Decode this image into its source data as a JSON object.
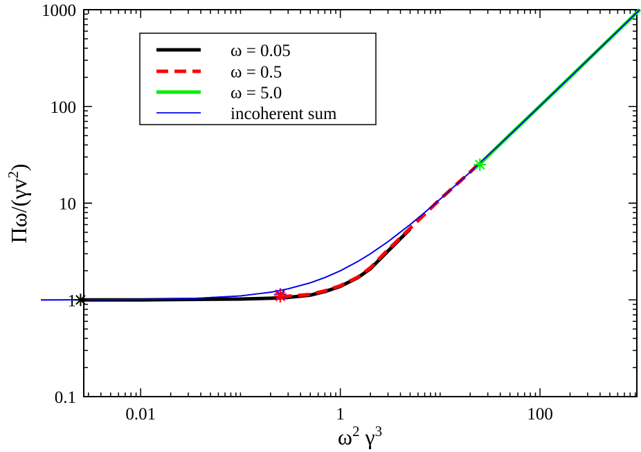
{
  "chart_data": {
    "type": "line",
    "xscale": "log",
    "yscale": "log",
    "xlim": [
      0.001,
      1000
    ],
    "ylim": [
      0.1,
      1000
    ],
    "xticks": [
      {
        "value": 0.01,
        "label": "0.01"
      },
      {
        "value": 1,
        "label": "1"
      },
      {
        "value": 100,
        "label": "100"
      }
    ],
    "yticks": [
      {
        "value": 0.1,
        "label": "0.1"
      },
      {
        "value": 1,
        "label": "1"
      },
      {
        "value": 10,
        "label": "10"
      },
      {
        "value": 100,
        "label": "100"
      },
      {
        "value": 1000,
        "label": "1000"
      }
    ],
    "xlabel": {
      "base1": "ω",
      "sup1": "2",
      "base2": " γ",
      "sup2": "3"
    },
    "ylabel": {
      "pre": "Πω/(γv",
      "sup": "2",
      "post": ")"
    },
    "legend_position": "top-left",
    "series": [
      {
        "name": "ω = 0.05",
        "color": "#000000",
        "style": "solid",
        "width": 5,
        "points": [
          [
            0.0025,
            1.0
          ],
          [
            0.01,
            1.0
          ],
          [
            0.03,
            1.01
          ],
          [
            0.1,
            1.02
          ],
          [
            0.2,
            1.04
          ],
          [
            0.3,
            1.06
          ],
          [
            0.5,
            1.12
          ],
          [
            0.7,
            1.22
          ],
          [
            1.0,
            1.38
          ],
          [
            1.5,
            1.7
          ],
          [
            2,
            2.1
          ],
          [
            3,
            3.2
          ],
          [
            5,
            5.4
          ]
        ]
      },
      {
        "name": "ω = 0.5",
        "color": "#ff0000",
        "style": "dashed",
        "width": 5,
        "points": [
          [
            0.25,
            1.06
          ],
          [
            0.3,
            1.09
          ],
          [
            0.5,
            1.14
          ],
          [
            0.7,
            1.24
          ],
          [
            1.0,
            1.4
          ],
          [
            1.5,
            1.72
          ],
          [
            2,
            2.15
          ],
          [
            3,
            3.3
          ],
          [
            5,
            5.5
          ],
          [
            10,
            11
          ],
          [
            20,
            21
          ],
          [
            25,
            26
          ]
        ]
      },
      {
        "name": "ω = 5.0",
        "color": "#00ee00",
        "style": "solid",
        "width": 5,
        "points": [
          [
            25,
            25.5
          ],
          [
            50,
            51
          ],
          [
            100,
            101
          ],
          [
            200,
            201
          ],
          [
            500,
            501
          ],
          [
            1000,
            1001
          ]
        ]
      },
      {
        "name": "incoherent sum",
        "color": "#0000ee",
        "style": "solid",
        "width": 1.8,
        "points": [
          [
            0.001,
            1.0
          ],
          [
            0.003,
            1.003
          ],
          [
            0.01,
            1.01
          ],
          [
            0.03,
            1.03
          ],
          [
            0.1,
            1.1
          ],
          [
            0.2,
            1.2
          ],
          [
            0.3,
            1.3
          ],
          [
            0.5,
            1.5
          ],
          [
            0.7,
            1.7
          ],
          [
            1,
            2
          ],
          [
            1.5,
            2.5
          ],
          [
            2,
            3
          ],
          [
            3,
            4
          ],
          [
            5,
            6
          ],
          [
            7,
            8
          ],
          [
            10,
            11
          ],
          [
            20,
            21
          ],
          [
            50,
            51
          ],
          [
            100,
            101
          ],
          [
            300,
            301
          ],
          [
            1000,
            1001
          ]
        ]
      }
    ],
    "markers": [
      {
        "x": 0.0025,
        "y": 1.0,
        "color": "#000000",
        "symbol": "asterisk"
      },
      {
        "x": 0.25,
        "y": 1.14,
        "color": "#7700aa",
        "symbol": "asterisk"
      },
      {
        "x": 0.25,
        "y": 1.09,
        "color": "#ff0000",
        "symbol": "asterisk"
      },
      {
        "x": 25,
        "y": 25,
        "color": "#00ee00",
        "symbol": "asterisk"
      }
    ]
  }
}
